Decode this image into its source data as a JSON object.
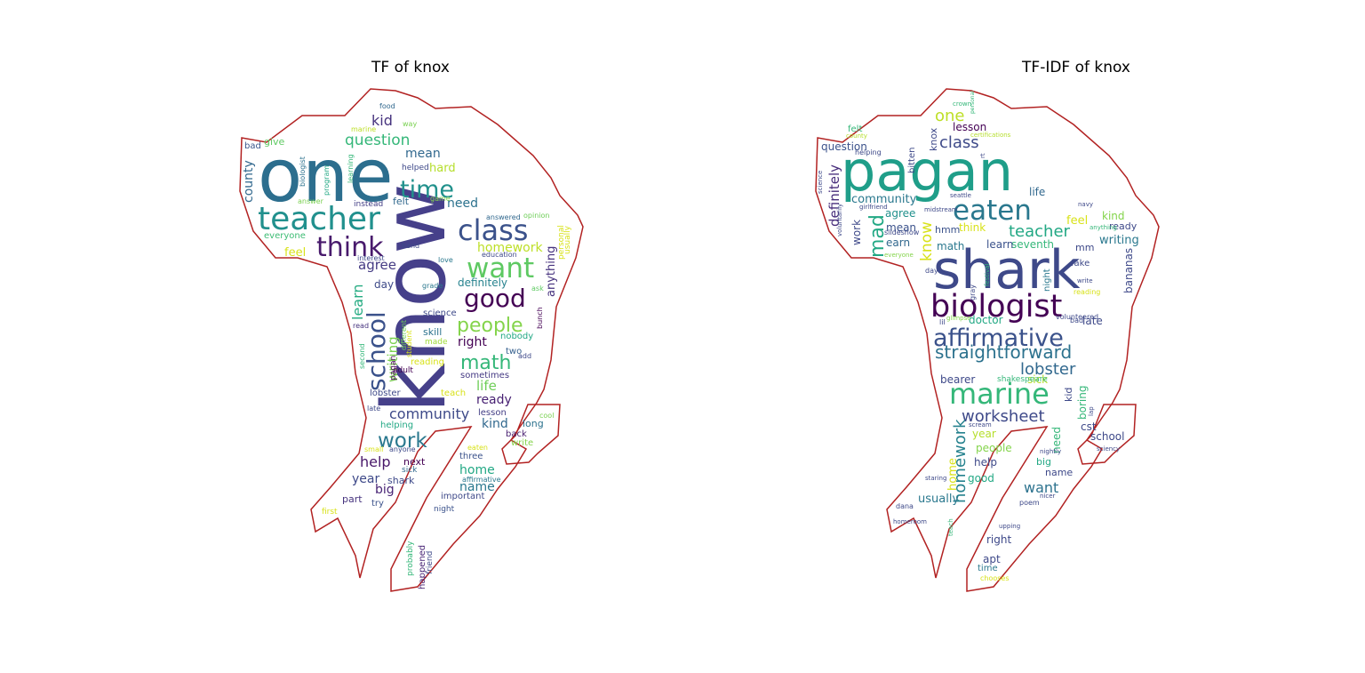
{
  "figure": {
    "panels": [
      {
        "title": "TF of knox",
        "words": [
          {
            "text": "know",
            "color": "#46408a"
          },
          {
            "text": "one",
            "color": "#2c6e8e"
          },
          {
            "text": "teacher",
            "color": "#21908d"
          },
          {
            "text": "think",
            "color": "#481a6c"
          },
          {
            "text": "class",
            "color": "#3b528b"
          },
          {
            "text": "want",
            "color": "#5ec962"
          },
          {
            "text": "time",
            "color": "#21918c"
          },
          {
            "text": "good",
            "color": "#440154"
          },
          {
            "text": "school",
            "color": "#3b528b"
          },
          {
            "text": "people",
            "color": "#84d44b"
          },
          {
            "text": "math",
            "color": "#35b779"
          },
          {
            "text": "work",
            "color": "#2a788e"
          },
          {
            "text": "community",
            "color": "#3e4a89"
          },
          {
            "text": "question",
            "color": "#35b779"
          },
          {
            "text": "mean",
            "color": "#31688e"
          },
          {
            "text": "kid",
            "color": "#46337e"
          },
          {
            "text": "homework",
            "color": "#bddf26"
          },
          {
            "text": "agree",
            "color": "#443a83"
          },
          {
            "text": "learn",
            "color": "#25ab82"
          },
          {
            "text": "writing",
            "color": "#7ad151"
          },
          {
            "text": "need",
            "color": "#2c728e"
          },
          {
            "text": "life",
            "color": "#6ece58"
          },
          {
            "text": "ready",
            "color": "#482173"
          },
          {
            "text": "right",
            "color": "#440154"
          },
          {
            "text": "kind",
            "color": "#31688e"
          },
          {
            "text": "help",
            "color": "#481769"
          },
          {
            "text": "year",
            "color": "#3e4989"
          },
          {
            "text": "home",
            "color": "#22a884"
          },
          {
            "text": "name",
            "color": "#2a788e"
          },
          {
            "text": "big",
            "color": "#482475"
          },
          {
            "text": "feel",
            "color": "#d8e219"
          },
          {
            "text": "hard",
            "color": "#b5de2b"
          },
          {
            "text": "county",
            "color": "#31688e"
          },
          {
            "text": "give",
            "color": "#5ec962"
          },
          {
            "text": "bad",
            "color": "#39568c"
          },
          {
            "text": "day",
            "color": "#3e4a89"
          },
          {
            "text": "definitely",
            "color": "#26828e"
          },
          {
            "text": "anything",
            "color": "#46327e"
          },
          {
            "text": "skill",
            "color": "#2c728e"
          },
          {
            "text": "two",
            "color": "#355f8d"
          },
          {
            "text": "long",
            "color": "#2c728e"
          },
          {
            "text": "back",
            "color": "#481f70"
          },
          {
            "text": "next",
            "color": "#440154"
          },
          {
            "text": "three",
            "color": "#3b528b"
          },
          {
            "text": "shark",
            "color": "#3e4989"
          },
          {
            "text": "part",
            "color": "#46337e"
          },
          {
            "text": "try",
            "color": "#3b528b"
          },
          {
            "text": "important",
            "color": "#3e4989"
          },
          {
            "text": "sometimes",
            "color": "#443983"
          },
          {
            "text": "lesson",
            "color": "#433e85"
          },
          {
            "text": "nobody",
            "color": "#22a884"
          },
          {
            "text": "made",
            "color": "#a0da39"
          },
          {
            "text": "science",
            "color": "#3e4989"
          },
          {
            "text": "reading",
            "color": "#d8e219"
          },
          {
            "text": "adult",
            "color": "#440154"
          },
          {
            "text": "everyone",
            "color": "#3dbc74"
          },
          {
            "text": "felt",
            "color": "#31688e"
          },
          {
            "text": "instead",
            "color": "#433e85"
          },
          {
            "text": "helped",
            "color": "#3e4989"
          },
          {
            "text": "game",
            "color": "#84d44b"
          },
          {
            "text": "answered",
            "color": "#31688e"
          },
          {
            "text": "opinion",
            "color": "#6ece58"
          },
          {
            "text": "education",
            "color": "#3e4989"
          },
          {
            "text": "hand",
            "color": "#3e4989"
          },
          {
            "text": "interest",
            "color": "#3e4989"
          },
          {
            "text": "love",
            "color": "#2a788e"
          },
          {
            "text": "grade",
            "color": "#2a788e"
          },
          {
            "text": "food",
            "color": "#31688e"
          },
          {
            "text": "way",
            "color": "#7ad151"
          },
          {
            "text": "marine",
            "color": "#bddf26"
          },
          {
            "text": "biologist",
            "color": "#2c728e"
          },
          {
            "text": "program",
            "color": "#22a884"
          },
          {
            "text": "learning",
            "color": "#35b779"
          },
          {
            "text": "answer",
            "color": "#7ad151"
          },
          {
            "text": "usually",
            "color": "#d8e219"
          },
          {
            "text": "personal",
            "color": "#d8e219"
          },
          {
            "text": "ask",
            "color": "#5ec962"
          },
          {
            "text": "bunch",
            "color": "#440154"
          },
          {
            "text": "read",
            "color": "#46337e"
          },
          {
            "text": "second",
            "color": "#35b779"
          },
          {
            "text": "different",
            "color": "#6ece58"
          },
          {
            "text": "student",
            "color": "#d8e219"
          },
          {
            "text": "pagan",
            "color": "#440154"
          },
          {
            "text": "lobster",
            "color": "#3e4989"
          },
          {
            "text": "late",
            "color": "#3e4989"
          },
          {
            "text": "teach",
            "color": "#d8e219"
          },
          {
            "text": "helping",
            "color": "#22a884"
          },
          {
            "text": "cool",
            "color": "#7ad151"
          },
          {
            "text": "add",
            "color": "#3e4989"
          },
          {
            "text": "small",
            "color": "#d8e219"
          },
          {
            "text": "anyone",
            "color": "#3e4989"
          },
          {
            "text": "eaten",
            "color": "#d8e219"
          },
          {
            "text": "write",
            "color": "#84d44b"
          },
          {
            "text": "sick",
            "color": "#31688e"
          },
          {
            "text": "affirmative",
            "color": "#2a788e"
          },
          {
            "text": "first",
            "color": "#d8e219"
          },
          {
            "text": "night",
            "color": "#3b528b"
          },
          {
            "text": "probably",
            "color": "#35b779"
          },
          {
            "text": "happened",
            "color": "#482475"
          },
          {
            "text": "friend",
            "color": "#3e4989"
          }
        ]
      },
      {
        "title": "TF-IDF of knox",
        "words": [
          {
            "text": "pagan",
            "color": "#1f9e89"
          },
          {
            "text": "shark",
            "color": "#3e4989"
          },
          {
            "text": "biologist",
            "color": "#440154"
          },
          {
            "text": "eaten",
            "color": "#2a788e"
          },
          {
            "text": "affirmative",
            "color": "#3b528b"
          },
          {
            "text": "marine",
            "color": "#35b779"
          },
          {
            "text": "straightforward",
            "color": "#2c728e"
          },
          {
            "text": "worksheet",
            "color": "#3e4989"
          },
          {
            "text": "lobster",
            "color": "#31688e"
          },
          {
            "text": "teacher",
            "color": "#22a884"
          },
          {
            "text": "class",
            "color": "#3e4a89"
          },
          {
            "text": "one",
            "color": "#bddf26"
          },
          {
            "text": "mad",
            "color": "#22a884"
          },
          {
            "text": "homework",
            "color": "#26828e"
          },
          {
            "text": "want",
            "color": "#2c728e"
          },
          {
            "text": "know",
            "color": "#d8e219"
          },
          {
            "text": "definitely",
            "color": "#472d7b"
          },
          {
            "text": "community",
            "color": "#2a788e"
          },
          {
            "text": "question",
            "color": "#3b528b"
          },
          {
            "text": "lesson",
            "color": "#440154"
          },
          {
            "text": "knox",
            "color": "#3e4989"
          },
          {
            "text": "life",
            "color": "#31688e"
          },
          {
            "text": "feel",
            "color": "#d8e219"
          },
          {
            "text": "kind",
            "color": "#84d44b"
          },
          {
            "text": "ready",
            "color": "#3e4989"
          },
          {
            "text": "writing",
            "color": "#2a788e"
          },
          {
            "text": "teacher2",
            "color": "#22a884"
          },
          {
            "text": "seventh",
            "color": "#35b779"
          },
          {
            "text": "agree",
            "color": "#21918c"
          },
          {
            "text": "mean",
            "color": "#3b528b"
          },
          {
            "text": "earn",
            "color": "#31688e"
          },
          {
            "text": "hmm",
            "color": "#3b528b"
          },
          {
            "text": "think",
            "color": "#d8e219"
          },
          {
            "text": "math",
            "color": "#2a788e"
          },
          {
            "text": "learn",
            "color": "#3b528b"
          },
          {
            "text": "work",
            "color": "#3e4989"
          },
          {
            "text": "bitten",
            "color": "#3e4989"
          },
          {
            "text": "mm",
            "color": "#3e4989"
          },
          {
            "text": "fake",
            "color": "#3e4989"
          },
          {
            "text": "bananas",
            "color": "#3e4989"
          },
          {
            "text": "night",
            "color": "#2a788e"
          },
          {
            "text": "late",
            "color": "#3e4989"
          },
          {
            "text": "doctor",
            "color": "#22a884"
          },
          {
            "text": "sick",
            "color": "#b5de2b"
          },
          {
            "text": "kid",
            "color": "#3e4989"
          },
          {
            "text": "boring",
            "color": "#35b779"
          },
          {
            "text": "bearer",
            "color": "#3e4989"
          },
          {
            "text": "shakespeare",
            "color": "#35b779"
          },
          {
            "text": "cst",
            "color": "#3e4989"
          },
          {
            "text": "school",
            "color": "#3e4989"
          },
          {
            "text": "year",
            "color": "#b5de2b"
          },
          {
            "text": "people",
            "color": "#84d44b"
          },
          {
            "text": "help",
            "color": "#3e4989"
          },
          {
            "text": "good",
            "color": "#22a884"
          },
          {
            "text": "need",
            "color": "#35b779"
          },
          {
            "text": "big",
            "color": "#22a884"
          },
          {
            "text": "name",
            "color": "#3e4989"
          },
          {
            "text": "home",
            "color": "#d8e219"
          },
          {
            "text": "usually",
            "color": "#2a788e"
          },
          {
            "text": "right",
            "color": "#3e4989"
          },
          {
            "text": "apt",
            "color": "#3e4989"
          },
          {
            "text": "time",
            "color": "#2a788e"
          },
          {
            "text": "chooses",
            "color": "#d8e219"
          },
          {
            "text": "felt",
            "color": "#35b779"
          },
          {
            "text": "crown",
            "color": "#35b779"
          },
          {
            "text": "county",
            "color": "#b5de2b"
          },
          {
            "text": "helping",
            "color": "#3e4989"
          },
          {
            "text": "certifications",
            "color": "#b5de2b"
          },
          {
            "text": "seattle",
            "color": "#3e4989"
          },
          {
            "text": "girlfriend",
            "color": "#3e4989"
          },
          {
            "text": "midstream",
            "color": "#3e4989"
          },
          {
            "text": "science",
            "color": "#3e4989"
          },
          {
            "text": "voluntarily",
            "color": "#3e4989"
          },
          {
            "text": "slideshow",
            "color": "#3e4989"
          },
          {
            "text": "everyone",
            "color": "#84d44b"
          },
          {
            "text": "gray",
            "color": "#3e4989"
          },
          {
            "text": "festival",
            "color": "#35b779"
          },
          {
            "text": "glimpse",
            "color": "#84d44b"
          },
          {
            "text": "volunteered",
            "color": "#3e4989"
          },
          {
            "text": "scream",
            "color": "#3e4989"
          },
          {
            "text": "nightly",
            "color": "#3e4989"
          },
          {
            "text": "staring",
            "color": "#3e4989"
          },
          {
            "text": "poem",
            "color": "#3e4989"
          },
          {
            "text": "dana",
            "color": "#3e4989"
          },
          {
            "text": "homeroom",
            "color": "#3e4989"
          },
          {
            "text": "teach",
            "color": "#35b779"
          },
          {
            "text": "upping",
            "color": "#3e4989"
          },
          {
            "text": "nicer",
            "color": "#3e4989"
          },
          {
            "text": "sciency",
            "color": "#3e4989"
          },
          {
            "text": "lap",
            "color": "#3e4989"
          },
          {
            "text": "anything",
            "color": "#35b779"
          },
          {
            "text": "navy",
            "color": "#3e4989"
          },
          {
            "text": "write",
            "color": "#3e4989"
          },
          {
            "text": "reading",
            "color": "#d8e219"
          },
          {
            "text": "bad",
            "color": "#3e4989"
          },
          {
            "text": "day",
            "color": "#3e4989"
          },
          {
            "text": "lil",
            "color": "#3e4989"
          },
          {
            "text": "rt",
            "color": "#3e4989"
          },
          {
            "text": "personal",
            "color": "#35b779"
          },
          {
            "text": "mc",
            "color": "#3e4989"
          }
        ]
      }
    ]
  }
}
